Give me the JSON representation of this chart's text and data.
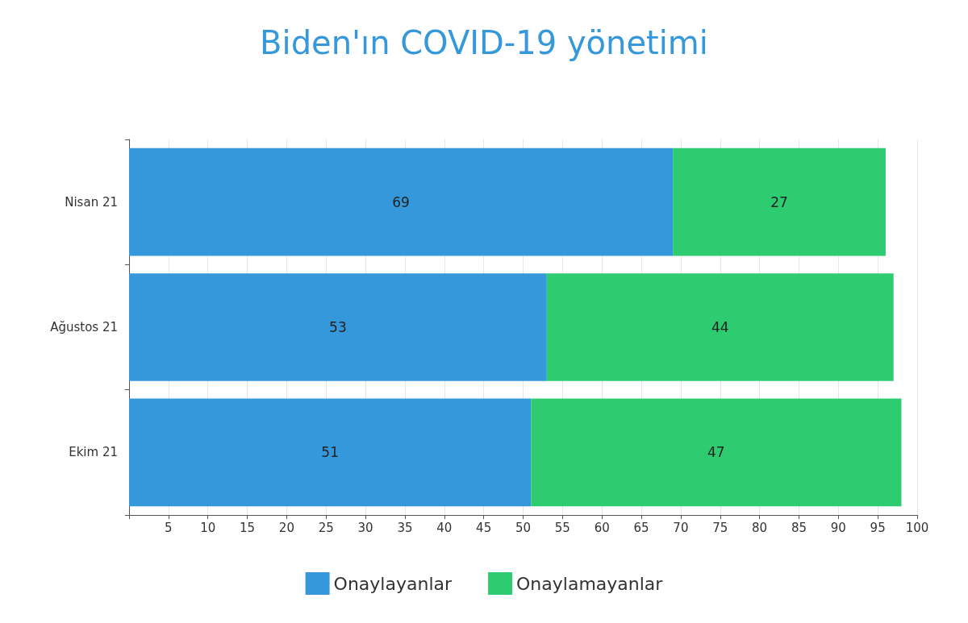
{
  "chart_data": {
    "type": "bar",
    "title": "Biden'ın COVID-19 yönetimi",
    "orientation": "horizontal",
    "stacked": true,
    "categories": [
      "Nisan 21",
      "Ağustos 21",
      "Ekim 21"
    ],
    "series": [
      {
        "name": "Onaylayanlar",
        "color": "#3498db",
        "values": [
          69,
          53,
          51
        ]
      },
      {
        "name": "Onaylamayanlar",
        "color": "#2ecc71",
        "values": [
          27,
          44,
          47
        ]
      }
    ],
    "xlim": [
      0,
      100
    ],
    "xticks": [
      {
        "value": 0,
        "label": null
      },
      5,
      10,
      15,
      20,
      25,
      30,
      35,
      40,
      45,
      50,
      55,
      60,
      65,
      70,
      75,
      80,
      85,
      90,
      95,
      100
    ],
    "grid": "x",
    "legend": "bottom",
    "data_labels": true
  }
}
